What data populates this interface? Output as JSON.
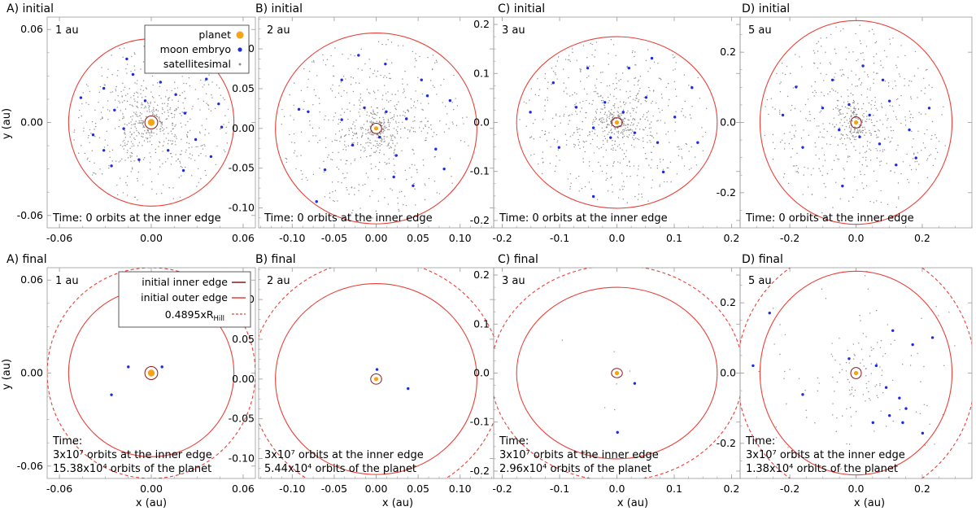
{
  "figure": {
    "xlabel": "x (au)",
    "ylabel": "y (au)"
  },
  "colors": {
    "planet": "#f5a418",
    "moon_embryo": "#1f2be0",
    "satellitesimal": "#8c8c8c",
    "inner_edge": "#8b1a1a",
    "outer_edge": "#e8413a",
    "hill": "#e8413a",
    "axes": "#9a9a9a"
  },
  "legend_top": {
    "planet": "planet",
    "moon_embryo": "moon embryo",
    "satellitesimal": "satellitesimal"
  },
  "legend_bottom": {
    "inner_edge": "initial inner edge",
    "outer_edge": "initial outer edge",
    "hill_prefix": "0.4895xR",
    "hill_sub": "Hill"
  },
  "chart_data": [
    {
      "type": "scatter",
      "title": "A) initial",
      "distance": "1 au",
      "time_lines": [
        "Time:  0 orbits at the inner edge"
      ],
      "xlim": [
        -0.068,
        0.068
      ],
      "ylim": [
        -0.068,
        0.068
      ],
      "xticks": [
        -0.06,
        0.0,
        0.06
      ],
      "xtick_labels": [
        "-0.06",
        "0.00",
        "0.06"
      ],
      "yticks": [
        -0.06,
        0.0,
        0.06
      ],
      "ytick_labels": [
        "-0.06",
        "0.00",
        "0.06"
      ],
      "inner_radius": 0.0042,
      "outer_radius": 0.054,
      "hill_radius": null,
      "planet": [
        0.0,
        0.0
      ],
      "embryos": [
        [
          -0.046,
          0.016
        ],
        [
          -0.031,
          0.022
        ],
        [
          -0.024,
          0.008
        ],
        [
          -0.018,
          -0.004
        ],
        [
          -0.012,
          0.031
        ],
        [
          -0.004,
          0.014
        ],
        [
          0.006,
          0.026
        ],
        [
          0.016,
          0.018
        ],
        [
          0.022,
          0.006
        ],
        [
          0.029,
          -0.011
        ],
        [
          0.036,
          0.028
        ],
        [
          0.044,
          0.012
        ],
        [
          0.011,
          -0.018
        ],
        [
          -0.008,
          -0.024
        ],
        [
          -0.026,
          -0.028
        ],
        [
          0.021,
          -0.031
        ],
        [
          0.039,
          -0.022
        ],
        [
          -0.038,
          -0.008
        ],
        [
          0.032,
          0.042
        ],
        [
          -0.016,
          0.041
        ],
        [
          0.046,
          -0.003
        ],
        [
          -0.031,
          -0.018
        ]
      ],
      "satellitesimals": {
        "count": 600,
        "r_min": 0.005,
        "r_max": 0.052,
        "seed": 11
      }
    },
    {
      "type": "scatter",
      "title": "B) initial",
      "distance": "2 au",
      "time_lines": [
        "Time:  0 orbits at the inner edge"
      ],
      "xlim": [
        -0.14,
        0.14
      ],
      "ylim": [
        -0.125,
        0.14
      ],
      "xticks": [
        -0.1,
        -0.05,
        0.0,
        0.05,
        0.1
      ],
      "xtick_labels": [
        "-0.10",
        "-0.05",
        "0.00",
        "0.05",
        "0.10"
      ],
      "yticks": [
        -0.1,
        -0.05,
        0.0,
        0.05,
        0.1
      ],
      "ytick_labels": [
        "-0.10",
        "-0.05",
        "0.00",
        "0.05",
        "0.10"
      ],
      "inner_radius": 0.0065,
      "outer_radius": 0.12,
      "hill_radius": null,
      "planet": [
        0.0,
        0.0
      ],
      "embryos": [
        [
          -0.092,
          0.024
        ],
        [
          -0.061,
          -0.052
        ],
        [
          -0.041,
          0.011
        ],
        [
          -0.028,
          -0.021
        ],
        [
          -0.014,
          0.026
        ],
        [
          0.004,
          -0.011
        ],
        [
          0.012,
          0.021
        ],
        [
          0.024,
          -0.034
        ],
        [
          0.036,
          0.012
        ],
        [
          0.054,
          0.061
        ],
        [
          0.071,
          -0.026
        ],
        [
          0.088,
          0.035
        ],
        [
          0.011,
          0.081
        ],
        [
          -0.021,
          0.092
        ],
        [
          -0.071,
          -0.092
        ],
        [
          0.044,
          -0.072
        ],
        [
          -0.041,
          0.061
        ],
        [
          0.061,
          0.041
        ],
        [
          0.081,
          -0.051
        ],
        [
          -0.081,
          0.021
        ],
        [
          0.021,
          -0.061
        ]
      ],
      "satellitesimals": {
        "count": 650,
        "r_min": 0.006,
        "r_max": 0.115,
        "seed": 22
      }
    },
    {
      "type": "scatter",
      "title": "C) initial",
      "distance": "3 au",
      "time_lines": [
        "Time:  0 orbits at the inner edge"
      ],
      "xlim": [
        -0.215,
        0.215
      ],
      "ylim": [
        -0.215,
        0.215
      ],
      "xticks": [
        -0.2,
        -0.1,
        0.0,
        0.1,
        0.2
      ],
      "xtick_labels": [
        "-0.2",
        "-0.1",
        "0.0",
        "0.1",
        "0.2"
      ],
      "yticks": [
        -0.2,
        -0.1,
        0.0,
        0.1,
        0.2
      ],
      "ytick_labels": [
        "-0.2",
        "-0.1",
        "0.0",
        "0.1",
        "0.2"
      ],
      "inner_radius": 0.0095,
      "outer_radius": 0.175,
      "hill_radius": null,
      "planet": [
        0.0,
        0.0
      ],
      "embryos": [
        [
          -0.151,
          0.021
        ],
        [
          -0.101,
          -0.051
        ],
        [
          -0.071,
          0.031
        ],
        [
          -0.041,
          -0.011
        ],
        [
          -0.021,
          0.041
        ],
        [
          -0.011,
          -0.031
        ],
        [
          0.011,
          0.021
        ],
        [
          0.031,
          -0.021
        ],
        [
          0.051,
          0.051
        ],
        [
          0.071,
          -0.041
        ],
        [
          0.101,
          0.011
        ],
        [
          0.131,
          0.071
        ],
        [
          0.021,
          0.111
        ],
        [
          -0.051,
          0.111
        ],
        [
          -0.041,
          -0.151
        ],
        [
          0.081,
          -0.101
        ],
        [
          0.061,
          0.131
        ],
        [
          -0.111,
          0.081
        ],
        [
          0.141,
          -0.041
        ]
      ],
      "satellitesimals": {
        "count": 700,
        "r_min": 0.008,
        "r_max": 0.17,
        "seed": 33
      }
    },
    {
      "type": "scatter",
      "title": "D) initial",
      "distance": "5 au",
      "time_lines": [
        "Time:  0 orbits at the inner edge"
      ],
      "xlim": [
        -0.35,
        0.35
      ],
      "ylim": [
        -0.3,
        0.3
      ],
      "xticks": [
        -0.2,
        0.0,
        0.2
      ],
      "xtick_labels": [
        "-0.2",
        "0.0",
        "0.2"
      ],
      "yticks": [
        -0.2,
        0.0,
        0.2
      ],
      "ytick_labels": [
        "-0.2",
        "0.0",
        "0.2"
      ],
      "inner_radius": 0.016,
      "outer_radius": 0.29,
      "hill_radius": null,
      "planet": [
        0.0,
        0.0
      ],
      "embryos": [
        [
          -0.221,
          0.021
        ],
        [
          -0.161,
          -0.071
        ],
        [
          -0.101,
          0.041
        ],
        [
          -0.051,
          -0.021
        ],
        [
          -0.021,
          0.051
        ],
        [
          0.011,
          -0.041
        ],
        [
          0.041,
          0.021
        ],
        [
          0.071,
          -0.061
        ],
        [
          0.101,
          0.061
        ],
        [
          0.161,
          -0.021
        ],
        [
          0.221,
          0.041
        ],
        [
          0.021,
          0.161
        ],
        [
          -0.071,
          0.121
        ],
        [
          -0.041,
          -0.181
        ],
        [
          0.121,
          -0.121
        ],
        [
          0.081,
          0.121
        ],
        [
          -0.181,
          0.101
        ],
        [
          0.181,
          -0.101
        ]
      ],
      "satellitesimals": {
        "count": 600,
        "r_min": 0.012,
        "r_max": 0.28,
        "seed": 44
      }
    },
    {
      "type": "scatter",
      "title": "A) final",
      "distance": "1 au",
      "time_lines": [
        "Time:",
        "3x10⁷ orbits at the inner edge",
        "15.38x10⁴ orbits of the planet"
      ],
      "xlim": [
        -0.068,
        0.068
      ],
      "ylim": [
        -0.068,
        0.068
      ],
      "xticks": [
        -0.06,
        0.0,
        0.06
      ],
      "xtick_labels": [
        "-0.06",
        "0.00",
        "0.06"
      ],
      "yticks": [
        -0.06,
        0.0,
        0.06
      ],
      "ytick_labels": [
        "-0.06",
        "0.00",
        "0.06"
      ],
      "inner_radius": 0.0042,
      "outer_radius": 0.054,
      "hill_radius": 0.068,
      "planet": [
        0.0,
        0.0
      ],
      "embryos": [
        [
          -0.015,
          0.004
        ],
        [
          -0.026,
          -0.014
        ],
        [
          0.007,
          0.004
        ]
      ],
      "satellitesimals": {
        "count": 0,
        "r_min": 0,
        "r_max": 0,
        "seed": 1
      }
    },
    {
      "type": "scatter",
      "title": "B) final",
      "distance": "2 au",
      "time_lines": [
        "3x10⁷ orbits at the inner edge",
        "5.44x10⁴ orbits of the planet"
      ],
      "xlim": [
        -0.14,
        0.14
      ],
      "ylim": [
        -0.125,
        0.14
      ],
      "xticks": [
        -0.1,
        -0.05,
        0.0,
        0.05,
        0.1
      ],
      "xtick_labels": [
        "-0.10",
        "-0.05",
        "0.00",
        "0.05",
        "0.10"
      ],
      "yticks": [
        -0.1,
        -0.05,
        0.0,
        0.05,
        0.1
      ],
      "ytick_labels": [
        "-0.10",
        "-0.05",
        "0.00",
        "0.05",
        "0.10"
      ],
      "inner_radius": 0.0065,
      "outer_radius": 0.12,
      "hill_radius": 0.15,
      "planet": [
        0.0,
        0.0
      ],
      "embryos": [
        [
          0.038,
          -0.012
        ],
        [
          0.001,
          0.012
        ]
      ],
      "satellitesimals": {
        "count": 0,
        "r_min": 0,
        "r_max": 0,
        "seed": 2
      }
    },
    {
      "type": "scatter",
      "title": "C) final",
      "distance": "3 au",
      "time_lines": [
        "Time:",
        "3x10⁷ orbits at the inner edge",
        "2.96x10⁴ orbits of the planet"
      ],
      "xlim": [
        -0.215,
        0.215
      ],
      "ylim": [
        -0.215,
        0.215
      ],
      "xticks": [
        -0.2,
        -0.1,
        0.0,
        0.1,
        0.2
      ],
      "xtick_labels": [
        "-0.2",
        "-0.1",
        "0.0",
        "0.1",
        "0.2"
      ],
      "yticks": [
        -0.2,
        -0.1,
        0.0,
        0.1,
        0.2
      ],
      "ytick_labels": [
        "-0.2",
        "-0.1",
        "0.0",
        "0.1",
        "0.2"
      ],
      "inner_radius": 0.0095,
      "outer_radius": 0.175,
      "hill_radius": 0.22,
      "planet": [
        0.0,
        0.0
      ],
      "embryos": [
        [
          0.031,
          -0.021
        ],
        [
          0.001,
          -0.121
        ]
      ],
      "satellitesimals": {
        "count": 6,
        "r_min": 0.02,
        "r_max": 0.16,
        "seed": 55
      }
    },
    {
      "type": "scatter",
      "title": "D) final",
      "distance": "5 au",
      "time_lines": [
        "Time:",
        "3x10⁷ orbits at the inner edge",
        "1.38x10⁴ orbits of the planet"
      ],
      "xlim": [
        -0.35,
        0.35
      ],
      "ylim": [
        -0.3,
        0.3
      ],
      "xticks": [
        -0.2,
        0.0,
        0.2
      ],
      "xtick_labels": [
        "-0.2",
        "0.0",
        "0.2"
      ],
      "yticks": [
        -0.2,
        0.0,
        0.2
      ],
      "ytick_labels": [
        "-0.2",
        "0.0",
        "0.2"
      ],
      "inner_radius": 0.016,
      "outer_radius": 0.29,
      "hill_radius": 0.36,
      "planet": [
        0.0,
        0.0
      ],
      "embryos": [
        [
          -0.261,
          0.171
        ],
        [
          -0.311,
          0.021
        ],
        [
          -0.021,
          0.041
        ],
        [
          0.061,
          0.021
        ],
        [
          0.091,
          -0.041
        ],
        [
          0.111,
          0.121
        ],
        [
          0.131,
          -0.071
        ],
        [
          0.151,
          -0.101
        ],
        [
          0.101,
          -0.121
        ],
        [
          0.171,
          0.081
        ],
        [
          0.201,
          -0.171
        ],
        [
          0.231,
          0.101
        ],
        [
          -0.161,
          -0.061
        ],
        [
          0.051,
          -0.141
        ],
        [
          0.141,
          -0.141
        ]
      ],
      "satellitesimals": {
        "count": 150,
        "r_min": 0.03,
        "r_max": 0.33,
        "seed": 66
      }
    }
  ]
}
